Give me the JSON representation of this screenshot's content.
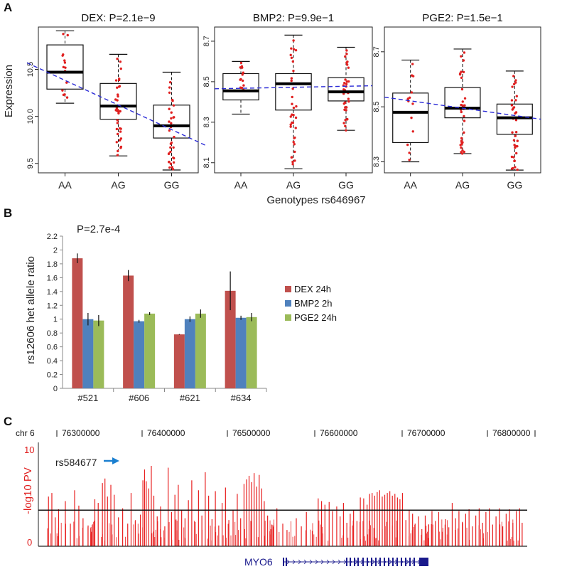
{
  "panels": {
    "a_label": "A",
    "b_label": "B",
    "c_label": "C"
  },
  "panel_a": {
    "ylabel": "Expression",
    "xlabel": "Genotypes rs646967",
    "genotypes": [
      "AA",
      "AG",
      "GG"
    ],
    "colors": {
      "points": "#e02020",
      "trend": "#2a2ad6",
      "box": "#111111"
    }
  },
  "panel_b": {
    "annotation": "P=2.7e-4"
  },
  "panel_c": {
    "chrom_label": "chr 6",
    "positions": [
      "76300000",
      "76400000",
      "76500000",
      "76600000",
      "76700000",
      "76800000"
    ],
    "ylabel": "-log10 PV",
    "y_ticks": [
      "10",
      "0"
    ],
    "snp_label": "rs584677",
    "gene_label": "MYO6",
    "colors": {
      "bars": "#e82020",
      "axis_text": "#e02020",
      "arrow": "#1a7fd0",
      "gene": "#1a1a8c"
    }
  },
  "chart_data": [
    {
      "type": "box",
      "title": "DEX: P=2.1e−9",
      "categories": [
        "AA",
        "AG",
        "GG"
      ],
      "ylabel": "Expression",
      "ylim": [
        9.4,
        10.95
      ],
      "yticks": [
        9.5,
        10.0,
        10.5
      ],
      "ytick_labels": [
        "9.5",
        "10.0",
        "10.5"
      ],
      "boxes": [
        {
          "q1": 10.29,
          "median": 10.47,
          "q3": 10.76,
          "whisker_low": 10.14,
          "whisker_high": 10.91
        },
        {
          "q1": 9.97,
          "median": 10.11,
          "q3": 10.35,
          "whisker_low": 9.58,
          "whisker_high": 10.66
        },
        {
          "q1": 9.77,
          "median": 9.9,
          "q3": 10.12,
          "whisker_low": 9.43,
          "whisker_high": 10.47
        }
      ],
      "trend": {
        "left": 10.57,
        "right": 9.69
      }
    },
    {
      "type": "box",
      "title": "BMP2: P=9.9e−1",
      "categories": [
        "AA",
        "AG",
        "GG"
      ],
      "ylim": [
        8.05,
        8.77
      ],
      "yticks": [
        8.1,
        8.3,
        8.5,
        8.7
      ],
      "ytick_labels": [
        "8.1",
        "8.3",
        "8.5",
        "8.7"
      ],
      "boxes": [
        {
          "q1": 8.41,
          "median": 8.455,
          "q3": 8.54,
          "whisker_low": 8.34,
          "whisker_high": 8.6
        },
        {
          "q1": 8.36,
          "median": 8.49,
          "q3": 8.54,
          "whisker_low": 8.07,
          "whisker_high": 8.73
        },
        {
          "q1": 8.405,
          "median": 8.45,
          "q3": 8.52,
          "whisker_low": 8.26,
          "whisker_high": 8.67
        }
      ],
      "trend": {
        "left": 8.465,
        "right": 8.48
      }
    },
    {
      "type": "box",
      "title": "PGE2: P=1.5e−1",
      "categories": [
        "AA",
        "AG",
        "GG"
      ],
      "ylim": [
        8.26,
        8.79
      ],
      "yticks": [
        8.3,
        8.5,
        8.7
      ],
      "ytick_labels": [
        "8.3",
        "8.5",
        "8.7"
      ],
      "boxes": [
        {
          "q1": 8.37,
          "median": 8.48,
          "q3": 8.55,
          "whisker_low": 8.3,
          "whisker_high": 8.67
        },
        {
          "q1": 8.46,
          "median": 8.495,
          "q3": 8.57,
          "whisker_low": 8.33,
          "whisker_high": 8.71
        },
        {
          "q1": 8.4,
          "median": 8.46,
          "q3": 8.51,
          "whisker_low": 8.27,
          "whisker_high": 8.63
        }
      ],
      "trend": {
        "left": 8.535,
        "right": 8.455
      }
    },
    {
      "type": "bar",
      "categories": [
        "#521",
        "#606",
        "#621",
        "#634"
      ],
      "ylabel": "rs12606 het allele ratio",
      "ylim": [
        0,
        2.2
      ],
      "yticks": [
        0,
        0.2,
        0.4,
        0.6,
        0.8,
        1,
        1.2,
        1.4,
        1.6,
        1.8,
        2,
        2.2
      ],
      "ytick_labels": [
        "0",
        "0.2",
        "0.4",
        "0.6",
        "0.8",
        "1",
        "1.2",
        "1.4",
        "1.6",
        "1.8",
        "2",
        "2.2"
      ],
      "series": [
        {
          "name": "DEX 24h",
          "color": "#c0504d",
          "values": [
            1.88,
            1.63,
            0.78,
            1.41
          ],
          "errors": [
            0.07,
            0.08,
            0.005,
            0.28
          ]
        },
        {
          "name": "BMP2 2h",
          "color": "#4f81bd",
          "values": [
            1.0,
            0.97,
            1.0,
            1.02
          ],
          "errors": [
            0.09,
            0.02,
            0.04,
            0.03
          ]
        },
        {
          "name": "PGE2 24h",
          "color": "#9bbb59",
          "values": [
            0.98,
            1.08,
            1.08,
            1.03
          ],
          "errors": [
            0.08,
            0.02,
            0.06,
            0.06
          ]
        }
      ]
    },
    {
      "type": "bar",
      "name": "manhattan",
      "ylabel": "-log10 PV",
      "xlim": [
        76250000,
        76830000
      ],
      "ylim": [
        0,
        11.5
      ],
      "threshold": 4.0,
      "bars": [
        [
          76262000,
          5.5
        ],
        [
          76266000,
          5.9
        ],
        [
          76270000,
          3.2
        ],
        [
          76274000,
          4.1
        ],
        [
          76282000,
          5.0
        ],
        [
          76288000,
          2.5
        ],
        [
          76293000,
          6.2
        ],
        [
          76298000,
          4.5
        ],
        [
          76303000,
          3.1
        ],
        [
          76309000,
          2.3
        ],
        [
          76313000,
          1.6
        ],
        [
          76317000,
          5.2
        ],
        [
          76321000,
          4.8
        ],
        [
          76326000,
          7.0
        ],
        [
          76329000,
          7.5
        ],
        [
          76332000,
          5.5
        ],
        [
          76336000,
          6.8
        ],
        [
          76340000,
          5.7
        ],
        [
          76345000,
          3.2
        ],
        [
          76350000,
          4.2
        ],
        [
          76356000,
          2.5
        ],
        [
          76360000,
          5.9
        ],
        [
          76365000,
          2.8
        ],
        [
          76371000,
          3.5
        ],
        [
          76374000,
          7.3
        ],
        [
          76376000,
          8.5
        ],
        [
          76378000,
          7.2
        ],
        [
          76381000,
          6.4
        ],
        [
          76384000,
          8.9
        ],
        [
          76387000,
          5.6
        ],
        [
          76391000,
          3.3
        ],
        [
          76395000,
          4.4
        ],
        [
          76400000,
          2.2
        ],
        [
          76404000,
          8.7
        ],
        [
          76408000,
          3.8
        ],
        [
          76412000,
          5.7
        ],
        [
          76416000,
          6.8
        ],
        [
          76420000,
          4.0
        ],
        [
          76424000,
          3.1
        ],
        [
          76428000,
          5.1
        ],
        [
          76432000,
          7.3
        ],
        [
          76436000,
          2.7
        ],
        [
          76440000,
          6.2
        ],
        [
          76444000,
          3.4
        ],
        [
          76448000,
          8.2
        ],
        [
          76452000,
          5.6
        ],
        [
          76456000,
          3.0
        ],
        [
          76460000,
          6.1
        ],
        [
          76464000,
          2.3
        ],
        [
          76468000,
          4.8
        ],
        [
          76472000,
          6.5
        ],
        [
          76476000,
          2.9
        ],
        [
          76481000,
          4.0
        ],
        [
          76486000,
          5.8
        ],
        [
          76490000,
          3.1
        ],
        [
          76494000,
          6.9
        ],
        [
          76497000,
          7.4
        ],
        [
          76500000,
          7.8
        ],
        [
          76503000,
          7.1
        ],
        [
          76506000,
          8.1
        ],
        [
          76509000,
          6.6
        ],
        [
          76512000,
          7.9
        ],
        [
          76515000,
          6.4
        ],
        [
          76518000,
          5.0
        ],
        [
          76522000,
          3.4
        ],
        [
          76527000,
          2.4
        ],
        [
          76533000,
          4.2
        ],
        [
          76540000,
          2.5
        ],
        [
          76545000,
          1.8
        ],
        [
          76556000,
          3.1
        ],
        [
          76562000,
          2.2
        ],
        [
          76568000,
          3.8
        ],
        [
          76575000,
          1.7
        ],
        [
          76582000,
          5.3
        ],
        [
          76586000,
          5.0
        ],
        [
          76590000,
          4.6
        ],
        [
          76595000,
          4.9
        ],
        [
          76599000,
          3.9
        ],
        [
          76604000,
          4.4
        ],
        [
          76608000,
          3.3
        ],
        [
          76612000,
          4.8
        ],
        [
          76616000,
          2.6
        ],
        [
          76620000,
          3.6
        ],
        [
          76624000,
          4.0
        ],
        [
          76628000,
          2.8
        ],
        [
          76632000,
          5.4
        ],
        [
          76636000,
          5.3
        ],
        [
          76640000,
          4.6
        ],
        [
          76643000,
          5.8
        ],
        [
          76646000,
          5.9
        ],
        [
          76649000,
          5.6
        ],
        [
          76652000,
          6.0
        ],
        [
          76655000,
          6.2
        ],
        [
          76658000,
          5.5
        ],
        [
          76661000,
          5.7
        ],
        [
          76664000,
          5.9
        ],
        [
          76667000,
          6.1
        ],
        [
          76670000,
          5.6
        ],
        [
          76673000,
          5.8
        ],
        [
          76676000,
          5.4
        ],
        [
          76679000,
          5.2
        ],
        [
          76682000,
          5.9
        ],
        [
          76686000,
          2.9
        ],
        [
          76690000,
          4.0
        ],
        [
          76694000,
          3.6
        ],
        [
          76697000,
          2.5
        ],
        [
          76701000,
          3.3
        ],
        [
          76705000,
          1.9
        ],
        [
          76709000,
          3.4
        ],
        [
          76713000,
          2.4
        ],
        [
          76717000,
          3.9
        ],
        [
          76721000,
          2.8
        ],
        [
          76725000,
          3.8
        ],
        [
          76729000,
          1.6
        ],
        [
          76733000,
          3.0
        ],
        [
          76737000,
          2.1
        ],
        [
          76741000,
          4.8
        ],
        [
          76745000,
          3.1
        ],
        [
          76749000,
          3.9
        ],
        [
          76753000,
          2.7
        ],
        [
          76757000,
          3.6
        ],
        [
          76761000,
          4.1
        ],
        [
          76765000,
          2.2
        ],
        [
          76769000,
          3.4
        ],
        [
          76773000,
          4.2
        ],
        [
          76777000,
          2.6
        ],
        [
          76781000,
          3.8
        ],
        [
          76785000,
          4.2
        ],
        [
          76789000,
          2.4
        ],
        [
          76793000,
          3.3
        ],
        [
          76797000,
          4.2
        ],
        [
          76801000,
          2.2
        ],
        [
          76805000,
          3.6
        ],
        [
          76809000,
          4.1
        ],
        [
          76813000,
          2.6
        ],
        [
          76817000,
          3.9
        ],
        [
          76821000,
          4.2
        ],
        [
          76824000,
          2.6
        ]
      ]
    }
  ],
  "legend_b": [
    "DEX 24h",
    "BMP2 2h",
    "PGE2 24h"
  ]
}
